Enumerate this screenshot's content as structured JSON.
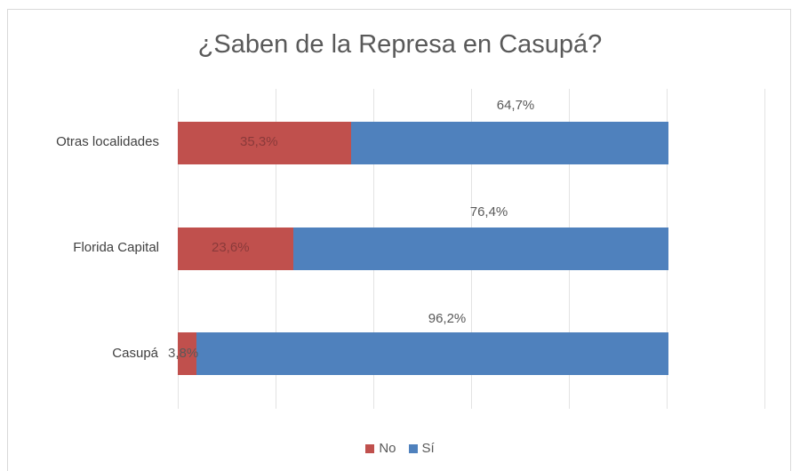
{
  "chart_data": {
    "type": "bar",
    "orientation": "horizontal",
    "stacked": "100%",
    "title": "¿Saben de la Represa en Casupá?",
    "categories": [
      "Otras localidades",
      "Florida Capital",
      "Casupá"
    ],
    "series": [
      {
        "name": "No",
        "color": "#c0504d",
        "values": [
          35.3,
          23.6,
          3.8
        ],
        "labels": [
          "35,3%",
          "23,6%",
          "3,8%"
        ]
      },
      {
        "name": "Sí",
        "color": "#4f81bd",
        "values": [
          64.7,
          76.4,
          96.2
        ],
        "labels": [
          "64,7%",
          "76,4%",
          "96,2%"
        ]
      }
    ],
    "xlabel": "",
    "ylabel": "",
    "xlim": [
      0,
      100
    ],
    "grid": true,
    "legend_position": "bottom"
  },
  "title": "¿Saben de la Represa en Casupá?",
  "rows": [
    {
      "category": "Otras localidades",
      "no": 35.3,
      "si": 64.7,
      "no_label": "35,3%",
      "si_label": "64,7%"
    },
    {
      "category": "Florida Capital",
      "no": 23.6,
      "si": 76.4,
      "no_label": "23,6%",
      "si_label": "76,4%"
    },
    {
      "category": "Casupá",
      "no": 3.8,
      "si": 96.2,
      "no_label": "3,8%",
      "si_label": "96,2%"
    }
  ],
  "legend": {
    "no": "No",
    "si": "Sí"
  },
  "colors": {
    "no": "#c0504d",
    "si": "#4f81bd"
  }
}
